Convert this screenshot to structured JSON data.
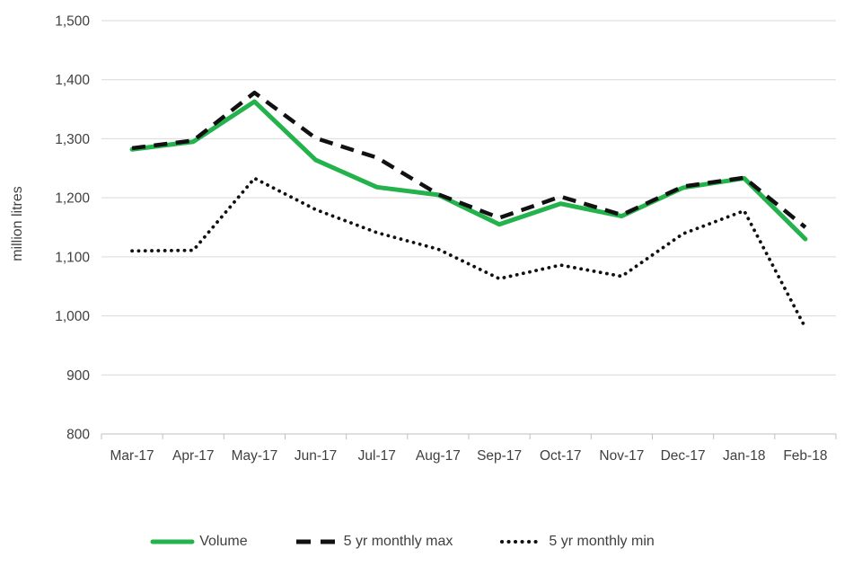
{
  "chart_data": {
    "type": "line",
    "title": "",
    "ylabel": "million litres",
    "xlabel": "",
    "ylim": [
      800,
      1500
    ],
    "grid": true,
    "legend_position": "bottom",
    "background_color": "#FFFFFF",
    "text_color": "#404040",
    "gridline_color": "#D9D9D9",
    "axis_color": "#BFBFBF",
    "categories": [
      "Mar-17",
      "Apr-17",
      "May-17",
      "Jun-17",
      "Jul-17",
      "Aug-17",
      "Sep-17",
      "Oct-17",
      "Nov-17",
      "Dec-17",
      "Jan-18",
      "Feb-18"
    ],
    "yticks": [
      {
        "value": 800,
        "label": "800"
      },
      {
        "value": 900,
        "label": "900"
      },
      {
        "value": 1000,
        "label": "1,000"
      },
      {
        "value": 1100,
        "label": "1,100"
      },
      {
        "value": 1200,
        "label": "1,200"
      },
      {
        "value": 1300,
        "label": "1,300"
      },
      {
        "value": 1400,
        "label": "1,400"
      },
      {
        "value": 1500,
        "label": "1,500"
      }
    ],
    "series": [
      {
        "name": "Volume",
        "line_style": "solid",
        "color": "#23B24C",
        "values": [
          1282,
          1295,
          1363,
          1264,
          1218,
          1205,
          1155,
          1190,
          1169,
          1217,
          1233,
          1130
        ]
      },
      {
        "name": "5 yr monthly max",
        "line_style": "dashed",
        "color": "#111111",
        "values": [
          1284,
          1297,
          1378,
          1301,
          1268,
          1206,
          1166,
          1202,
          1171,
          1219,
          1234,
          1150
        ]
      },
      {
        "name": "5 yr monthly min",
        "line_style": "dotted",
        "color": "#111111",
        "values": [
          1110,
          1111,
          1233,
          1180,
          1141,
          1113,
          1063,
          1086,
          1067,
          1139,
          1178,
          980
        ]
      }
    ]
  }
}
